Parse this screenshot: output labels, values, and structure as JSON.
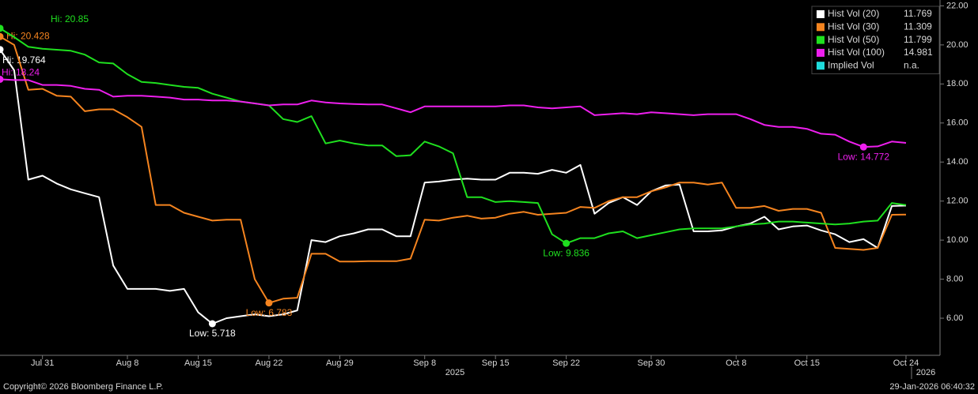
{
  "chart_data": {
    "type": "line",
    "categories": [
      null,
      null,
      null,
      "Jul 31",
      null,
      null,
      null,
      null,
      null,
      "Aug 8",
      null,
      null,
      null,
      null,
      "Aug 15",
      null,
      null,
      null,
      null,
      "Aug 22",
      null,
      null,
      null,
      null,
      "Aug 29",
      null,
      null,
      null,
      null,
      null,
      "Sep 8",
      null,
      null,
      null,
      null,
      "Sep 15",
      null,
      null,
      null,
      null,
      "Sep 22",
      null,
      null,
      null,
      null,
      null,
      "Sep 30",
      null,
      null,
      null,
      null,
      null,
      "Oct 8",
      null,
      null,
      null,
      null,
      "Oct 15",
      null,
      null,
      null,
      null,
      null,
      null,
      "Oct 24"
    ],
    "years": [
      "2025",
      "2026"
    ],
    "series": [
      {
        "name": "Hist Vol (20)",
        "color": "#ffffff",
        "hi_label": "Hi: 19.764",
        "low_label": "Low: 5.718",
        "values": [
          19.764,
          18.7,
          13.1,
          13.3,
          12.9,
          12.6,
          12.4,
          12.2,
          8.7,
          7.5,
          7.5,
          7.5,
          7.4,
          7.5,
          6.3,
          5.718,
          6.0,
          6.1,
          6.2,
          6.1,
          6.2,
          6.4,
          10.0,
          9.9,
          10.2,
          10.35,
          10.55,
          10.55,
          10.2,
          10.2,
          12.95,
          13.0,
          13.1,
          13.15,
          13.1,
          13.1,
          13.45,
          13.45,
          13.4,
          13.6,
          13.45,
          13.85,
          11.35,
          11.9,
          12.2,
          11.8,
          12.5,
          12.8,
          12.85,
          10.45,
          10.45,
          10.5,
          10.7,
          10.85,
          11.2,
          10.55,
          10.7,
          10.75,
          10.5,
          10.3,
          9.9,
          10.05,
          9.6,
          11.75,
          11.769
        ]
      },
      {
        "name": "Hist Vol (30)",
        "color": "#f5841f",
        "hi_label": "Hi: 20.428",
        "low_label": "Low: 6.783",
        "values": [
          20.428,
          20.0,
          17.7,
          17.75,
          17.4,
          17.35,
          16.6,
          16.7,
          16.7,
          16.3,
          15.8,
          11.8,
          11.8,
          11.4,
          11.2,
          11.0,
          11.05,
          11.05,
          8.0,
          6.783,
          7.0,
          7.05,
          9.3,
          9.3,
          8.9,
          8.9,
          8.92,
          8.92,
          8.92,
          9.05,
          11.05,
          11.0,
          11.15,
          11.25,
          11.1,
          11.15,
          11.35,
          11.45,
          11.3,
          11.35,
          11.4,
          11.7,
          11.65,
          12.0,
          12.2,
          12.2,
          12.5,
          12.7,
          12.95,
          12.95,
          12.85,
          12.95,
          11.65,
          11.65,
          11.75,
          11.5,
          11.6,
          11.6,
          11.4,
          9.6,
          9.55,
          9.5,
          9.6,
          11.3,
          11.309
        ]
      },
      {
        "name": "Hist Vol (50)",
        "color": "#1fe01f",
        "hi_label": "Hi: 20.85",
        "low_label": "Low: 9.836",
        "values": [
          20.85,
          20.4,
          19.9,
          19.8,
          19.75,
          19.7,
          19.5,
          19.1,
          19.05,
          18.5,
          18.1,
          18.05,
          17.95,
          17.85,
          17.8,
          17.5,
          17.3,
          17.1,
          17.0,
          16.9,
          16.2,
          16.05,
          16.35,
          14.95,
          15.1,
          14.95,
          14.85,
          14.85,
          14.3,
          14.35,
          15.05,
          14.8,
          14.45,
          12.2,
          12.2,
          11.95,
          12.0,
          11.95,
          11.9,
          10.3,
          9.836,
          10.1,
          10.1,
          10.35,
          10.45,
          10.1,
          10.25,
          10.4,
          10.55,
          10.6,
          10.6,
          10.6,
          10.7,
          10.8,
          10.85,
          10.95,
          10.95,
          10.9,
          10.85,
          10.8,
          10.85,
          10.95,
          11.0,
          11.9,
          11.799
        ]
      },
      {
        "name": "Hist Vol (100)",
        "color": "#ee1fee",
        "hi_label": "Hi: 18.24",
        "low_label": "Low: 14.772",
        "values": [
          18.24,
          18.2,
          18.2,
          17.95,
          17.95,
          17.9,
          17.75,
          17.7,
          17.35,
          17.4,
          17.4,
          17.35,
          17.3,
          17.2,
          17.2,
          17.15,
          17.15,
          17.1,
          17.0,
          16.9,
          16.95,
          16.95,
          17.15,
          17.05,
          17.0,
          16.97,
          16.95,
          16.95,
          16.75,
          16.55,
          16.85,
          16.85,
          16.85,
          16.85,
          16.85,
          16.85,
          16.9,
          16.9,
          16.8,
          16.75,
          16.8,
          16.85,
          16.4,
          16.45,
          16.5,
          16.45,
          16.55,
          16.5,
          16.45,
          16.4,
          16.45,
          16.45,
          16.45,
          16.2,
          15.9,
          15.8,
          15.8,
          15.7,
          15.45,
          15.4,
          15.05,
          14.772,
          14.8,
          15.05,
          14.981
        ]
      },
      {
        "name": "Implied Vol",
        "color": "#1fdcdc",
        "legend_value": "n.a.",
        "values": [
          null,
          null,
          null,
          null,
          null,
          null,
          null,
          null,
          null,
          null,
          null,
          null,
          null,
          null,
          null,
          null,
          null,
          null,
          null,
          null,
          null,
          null,
          null,
          null,
          null,
          null,
          null,
          null,
          null,
          null,
          null,
          null,
          null,
          null,
          null,
          null,
          null,
          null,
          null,
          null,
          null,
          null,
          null,
          null,
          null,
          null,
          null,
          null,
          null,
          null,
          null,
          null,
          null,
          null,
          null,
          null,
          null,
          null,
          null,
          null,
          null,
          null,
          null,
          null,
          null
        ]
      }
    ],
    "ylim": [
      4.1,
      22.3
    ],
    "yticks": [
      {
        "value": 6,
        "label": "6.00"
      },
      {
        "value": 8,
        "label": "8.00"
      },
      {
        "value": 10,
        "label": "10.00"
      },
      {
        "value": 12,
        "label": "12.00"
      },
      {
        "value": 14,
        "label": "14.00"
      },
      {
        "value": 16,
        "label": "16.00"
      },
      {
        "value": 18,
        "label": "18.00"
      },
      {
        "value": 20,
        "label": "20.00"
      },
      {
        "value": 22,
        "label": "22.00"
      }
    ],
    "legend": "top-right",
    "grid": false,
    "footer_left": "Copyright© 2026 Bloomberg Finance L.P.",
    "footer_right": "29-Jan-2026 06:40:32"
  }
}
